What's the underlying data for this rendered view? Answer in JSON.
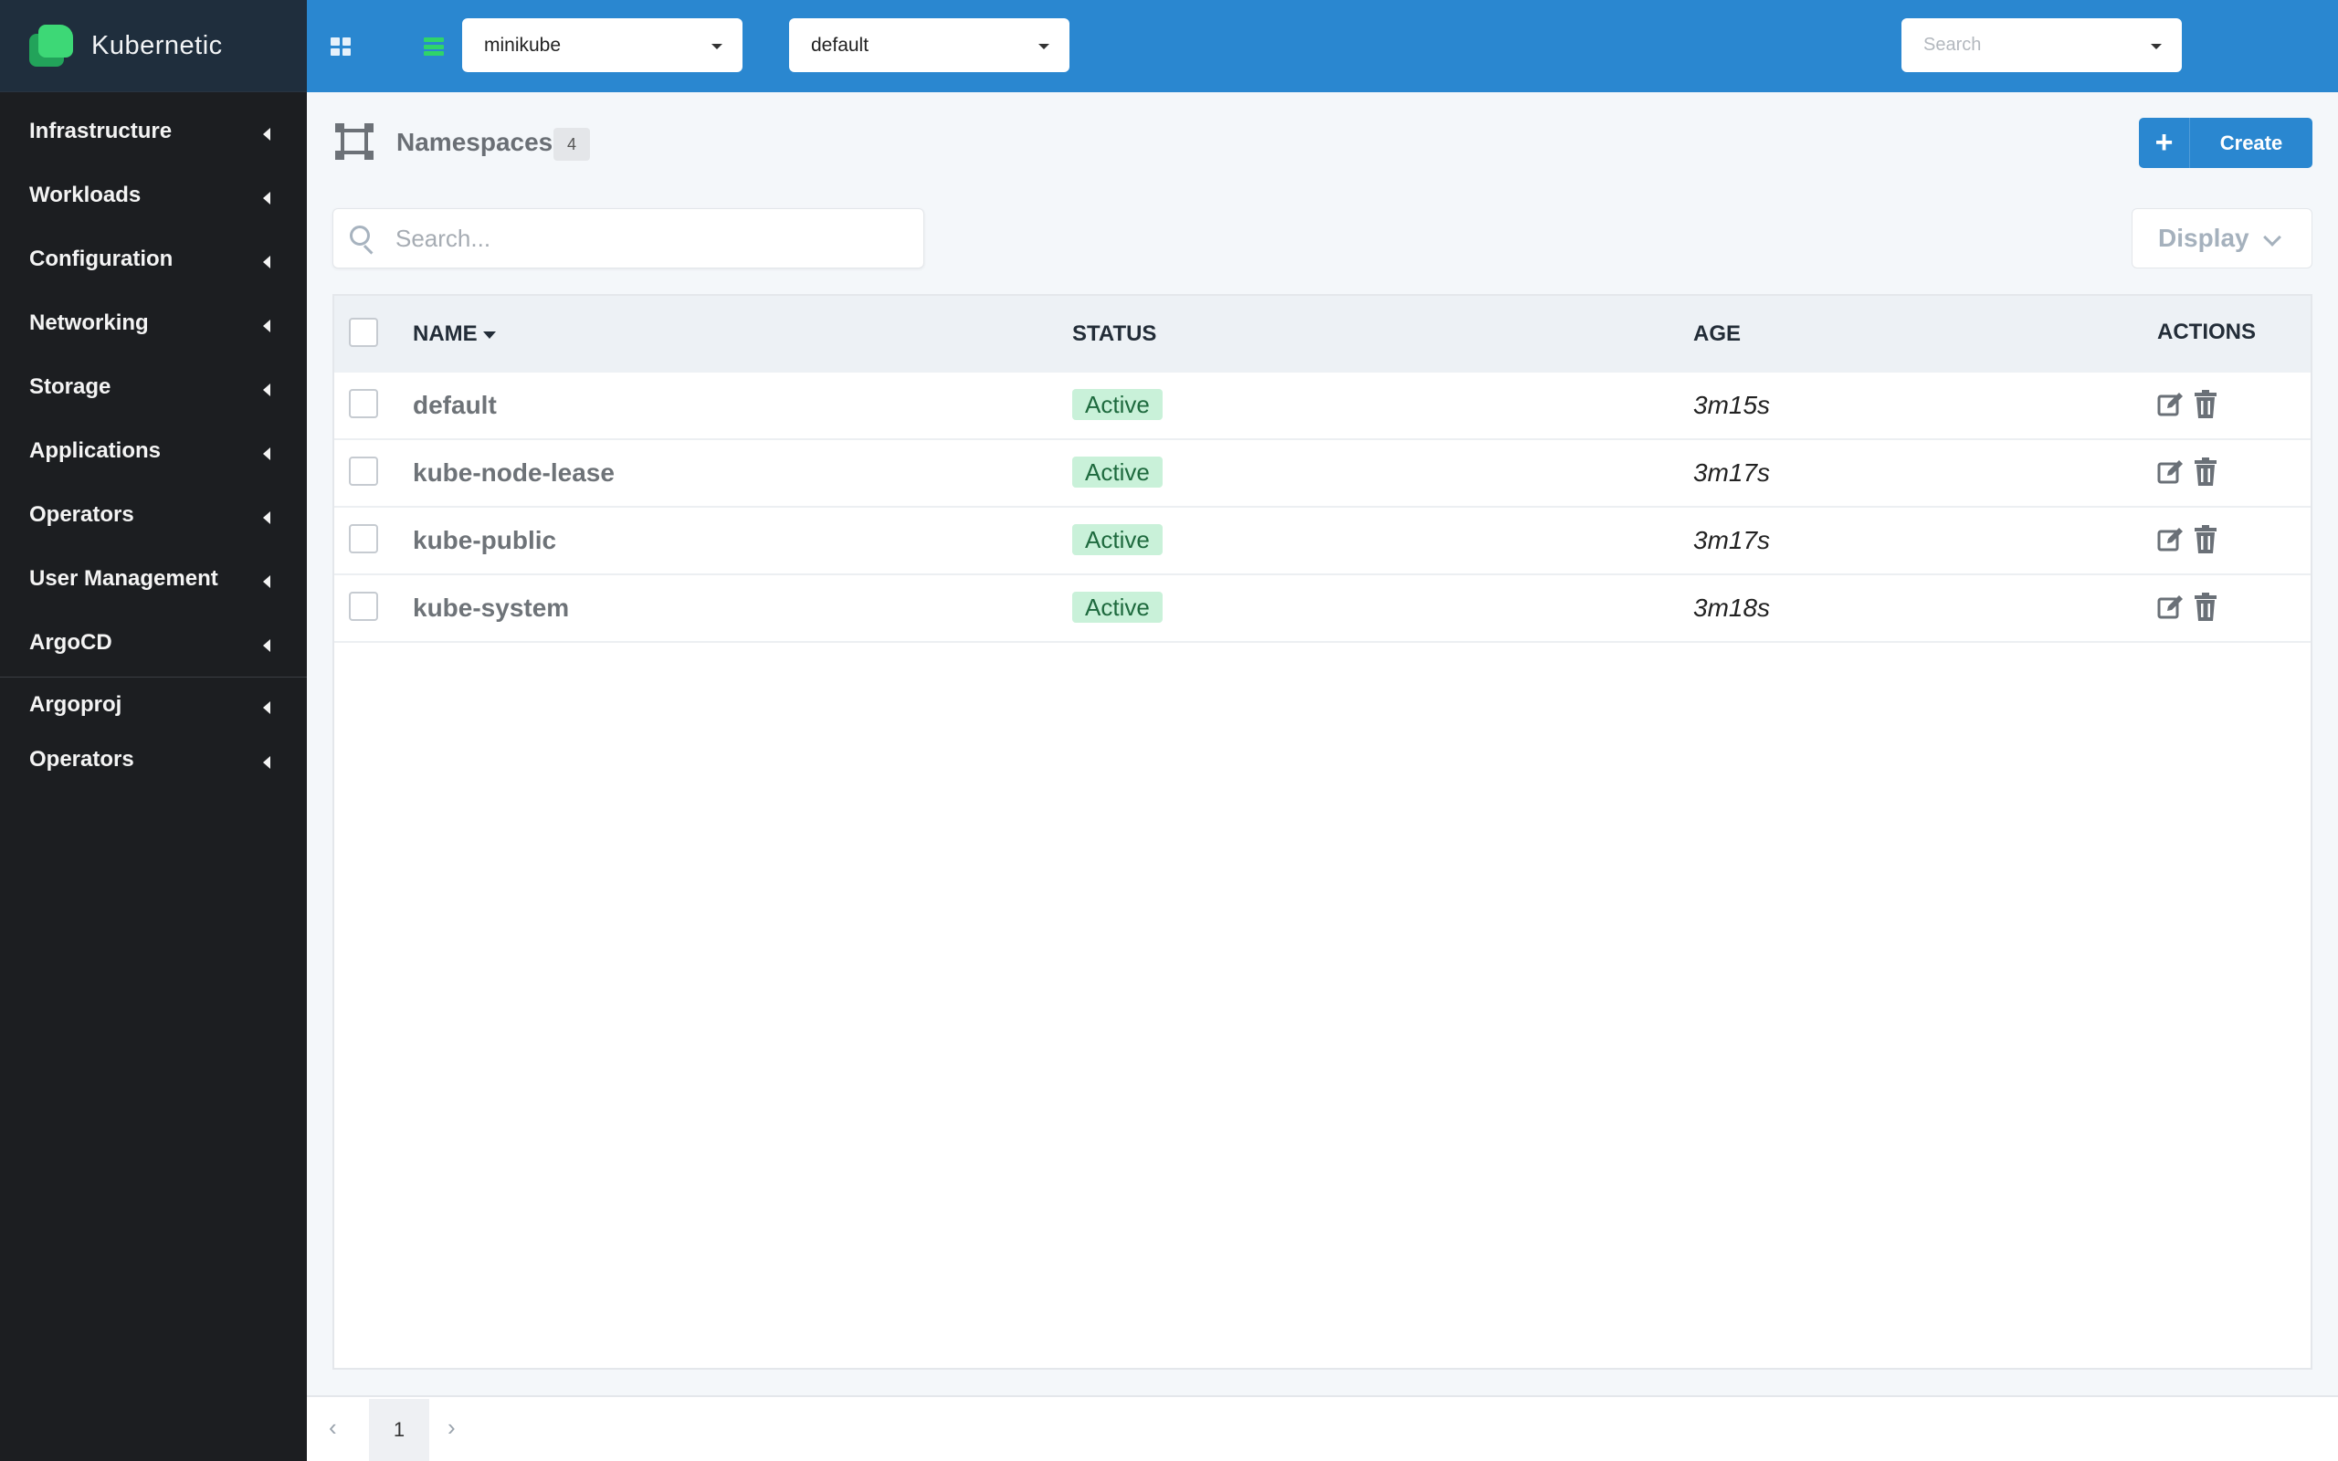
{
  "app": {
    "name": "Kubernetic"
  },
  "sidebar": {
    "items": [
      {
        "label": "Infrastructure"
      },
      {
        "label": "Workloads"
      },
      {
        "label": "Configuration"
      },
      {
        "label": "Networking"
      },
      {
        "label": "Storage"
      },
      {
        "label": "Applications"
      },
      {
        "label": "Operators"
      },
      {
        "label": "User Management"
      },
      {
        "label": "ArgoCD"
      }
    ],
    "extra_items": [
      {
        "label": "Argoproj"
      },
      {
        "label": "Operators"
      }
    ]
  },
  "topbar": {
    "cluster": "minikube",
    "namespace": "default",
    "search_placeholder": "Search"
  },
  "page": {
    "title": "Namespaces",
    "count": "4",
    "create_label": "Create",
    "search_placeholder": "Search...",
    "display_label": "Display"
  },
  "table": {
    "columns": {
      "name": "NAME",
      "status": "STATUS",
      "age": "AGE",
      "actions": "ACTIONS"
    },
    "rows": [
      {
        "name": "default",
        "status": "Active",
        "age": "3m15s"
      },
      {
        "name": "kube-node-lease",
        "status": "Active",
        "age": "3m17s"
      },
      {
        "name": "kube-public",
        "status": "Active",
        "age": "3m17s"
      },
      {
        "name": "kube-system",
        "status": "Active",
        "age": "3m18s"
      }
    ]
  },
  "pagination": {
    "prev": "‹",
    "current": "1",
    "next": "›"
  },
  "colors": {
    "accent": "#2a87d0",
    "sidebar": "#1c1e21",
    "status_active_bg": "#c9f1d9",
    "brand_green": "#3dd876"
  }
}
